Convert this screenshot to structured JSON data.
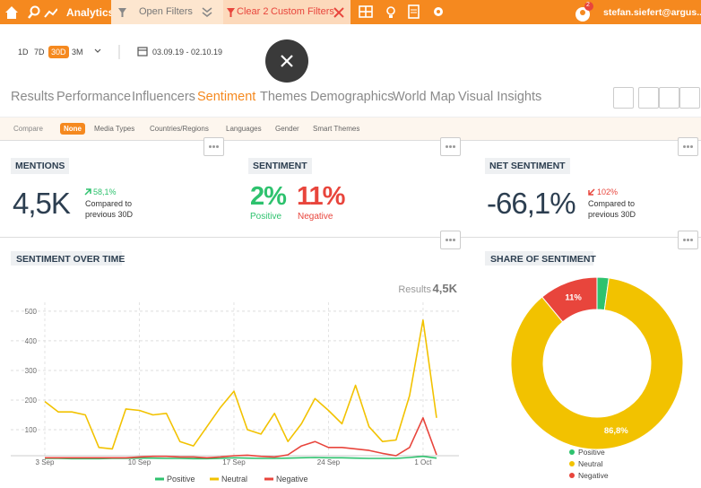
{
  "top_bar": {
    "app": "Analytics",
    "open_filters": "Open Filters",
    "clear_count": "Clear 2",
    "custom_filters": "Custom Filters",
    "notification_count": "2",
    "user": "stefan.siefert@argus..."
  },
  "period": {
    "options": [
      "1D",
      "7D",
      "30D",
      "3M"
    ],
    "selected": 2,
    "date_range": "03.09.19 - 02.10.19"
  },
  "tabs": {
    "items": [
      "Results",
      "Performance",
      "Influencers",
      "Sentiment",
      "Themes",
      "Demographics",
      "World Map",
      "Visual Insights"
    ],
    "active": 3
  },
  "compare": {
    "label": "Compare",
    "options": [
      "None",
      "Media Types",
      "Countries/Regions",
      "Languages",
      "Gender",
      "Smart Themes"
    ],
    "selected": 0
  },
  "kpis": {
    "mentions": {
      "title": "MENTIONS",
      "value": "4,5K",
      "change": "58,1%",
      "note": [
        "Compared to",
        "previous 30D"
      ]
    },
    "sentiment": {
      "title": "SENTIMENT",
      "positive": "2%",
      "positive_label": "Positive",
      "negative": "11%",
      "negative_label": "Negative"
    },
    "net_sentiment": {
      "title": "NET SENTIMENT",
      "value": "-66,1%",
      "change": "102%",
      "note": [
        "Compared to",
        "previous 30D"
      ]
    }
  },
  "chart_data": [
    {
      "type": "line",
      "title": "SENTIMENT OVER TIME",
      "total_label": "Results",
      "total": "4,5K",
      "categories": [
        "3 Sep",
        null,
        null,
        null,
        null,
        null,
        null,
        "10 Sep",
        null,
        null,
        null,
        null,
        null,
        null,
        "17 Sep",
        null,
        null,
        null,
        null,
        null,
        null,
        "24 Sep",
        null,
        null,
        null,
        null,
        null,
        null,
        "1 Oct",
        null
      ],
      "series": [
        {
          "name": "Positive",
          "color": "#2ec26e",
          "values": [
            3,
            3,
            2,
            2,
            2,
            3,
            3,
            4,
            4,
            3,
            3,
            2,
            2,
            3,
            5,
            4,
            3,
            3,
            4,
            5,
            6,
            5,
            5,
            4,
            3,
            3,
            3,
            6,
            10,
            4
          ]
        },
        {
          "name": "Neutral",
          "color": "#f2c200",
          "values": [
            195,
            160,
            160,
            150,
            40,
            35,
            170,
            165,
            150,
            155,
            60,
            45,
            110,
            175,
            230,
            100,
            85,
            155,
            60,
            120,
            205,
            165,
            120,
            250,
            110,
            60,
            65,
            215,
            470,
            140
          ]
        },
        {
          "name": "Negative",
          "color": "#e8453c",
          "values": [
            5,
            5,
            5,
            5,
            5,
            5,
            5,
            8,
            10,
            10,
            8,
            8,
            5,
            8,
            12,
            14,
            10,
            8,
            15,
            45,
            60,
            40,
            40,
            35,
            30,
            20,
            12,
            40,
            140,
            15
          ]
        }
      ],
      "ylim": [
        0,
        530
      ],
      "yticks": [
        100,
        200,
        300,
        400,
        500
      ],
      "grid": true,
      "legend": "bottom"
    },
    {
      "type": "pie",
      "title": "SHARE OF SENTIMENT",
      "donut": true,
      "categories": [
        "Positive",
        "Neutral",
        "Negative"
      ],
      "values": [
        2.2,
        86.8,
        11
      ],
      "value_labels": [
        null,
        "86,8%",
        "11%"
      ],
      "colors": [
        "#2ec26e",
        "#f2c200",
        "#e8453c"
      ],
      "legend": "bottom"
    }
  ]
}
